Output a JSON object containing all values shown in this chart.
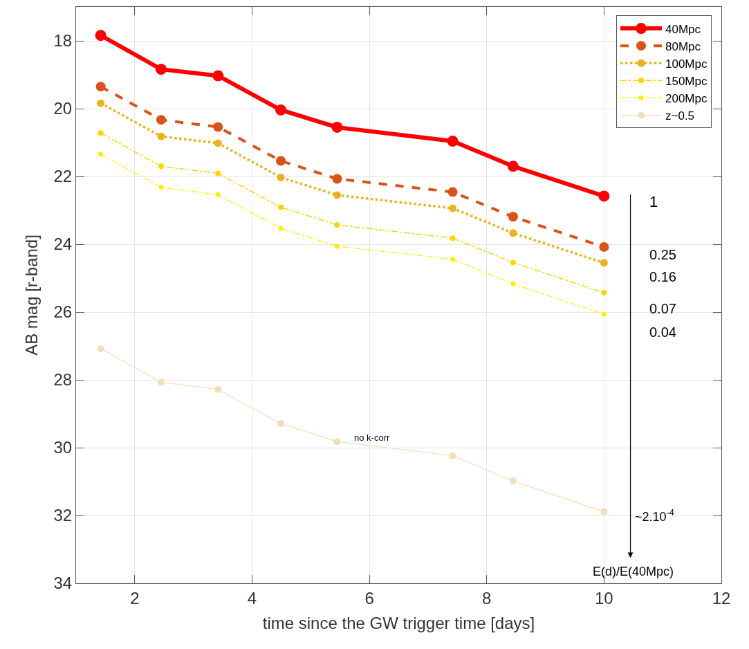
{
  "chart_data": {
    "type": "line",
    "xlabel": "time since the GW trigger time [days]",
    "ylabel": "AB mag [r-band]",
    "x": [
      1.42,
      2.45,
      3.42,
      4.49,
      5.45,
      7.42,
      8.45,
      10
    ],
    "series": [
      {
        "name": "40Mpc",
        "color": "#ff0000",
        "line_style": "solid",
        "values": [
          17.84,
          18.84,
          19.03,
          20.04,
          20.55,
          20.96,
          21.7,
          22.58
        ]
      },
      {
        "name": "80Mpc",
        "color": "#d95319",
        "line_style": "dashed",
        "values": [
          19.35,
          20.33,
          20.54,
          21.54,
          22.07,
          22.46,
          23.19,
          24.08
        ]
      },
      {
        "name": "100Mpc",
        "color": "#edb120",
        "line_style": "dotted",
        "values": [
          19.84,
          20.82,
          21.02,
          22.03,
          22.55,
          22.94,
          23.67,
          24.55
        ]
      },
      {
        "name": "150Mpc",
        "color": "#ffd400",
        "line_style": "dashdot",
        "values": [
          20.72,
          21.7,
          21.91,
          22.91,
          23.43,
          23.82,
          24.54,
          25.43
        ]
      },
      {
        "name": "200Mpc",
        "color": "#ffee00",
        "line_style": "dashdot",
        "values": [
          21.34,
          22.32,
          22.54,
          23.53,
          24.06,
          24.44,
          25.17,
          26.06
        ]
      },
      {
        "name": "z~0.5",
        "color": "#f2deb8",
        "line_style": "solid",
        "values": [
          27.08,
          28.07,
          28.28,
          29.29,
          29.82,
          30.24,
          30.98,
          31.89
        ]
      }
    ],
    "xlim": [
      1,
      12
    ],
    "xticks": [
      2,
      4,
      6,
      8,
      10,
      12
    ],
    "ylim": [
      34,
      17
    ],
    "yticks": [
      18,
      20,
      22,
      24,
      26,
      28,
      30,
      32,
      34
    ],
    "grid": true,
    "legend": "top right",
    "marker": "circle",
    "annotations": [
      "1",
      "0.25",
      "0.16",
      "0.07",
      "0.04",
      "~2.10$^{-4}$",
      "no k-corr",
      "E(d)/E(40Mpc)"
    ]
  }
}
